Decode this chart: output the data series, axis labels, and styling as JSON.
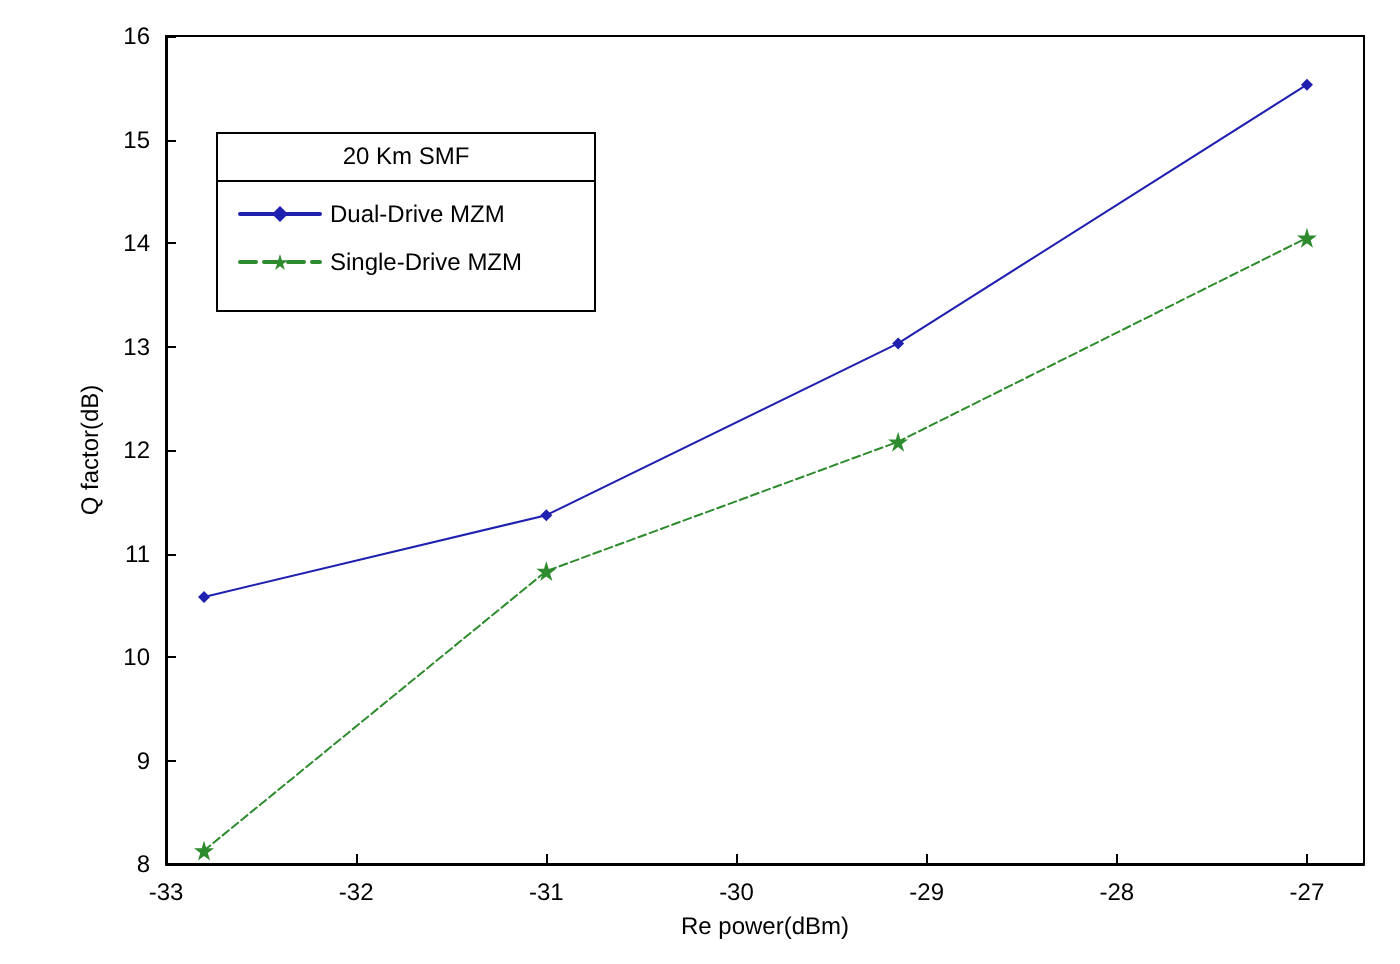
{
  "chart_data": {
    "type": "line",
    "xlabel": "Re power(dBm)",
    "ylabel": "Q factor(dB)",
    "legend_title": "20 Km SMF",
    "legend": "top left",
    "grid": false,
    "x": [
      -32.8,
      -31,
      -29.15,
      -27
    ],
    "xlim": [
      -33,
      -26.7
    ],
    "xticks": [
      -33,
      -32,
      -31,
      -30,
      -29,
      -28,
      -27
    ],
    "ylim": [
      8,
      16
    ],
    "yticks": [
      8,
      9,
      10,
      11,
      12,
      13,
      14,
      15,
      16
    ],
    "series": [
      {
        "name": "Dual-Drive MZM",
        "color": "#2020b0",
        "marker": "diamond",
        "line_style": "solid",
        "values": [
          10.58,
          11.37,
          13.03,
          15.53
        ]
      },
      {
        "name": "Single-Drive MZM",
        "color": "#2e8b2e",
        "marker": "star",
        "line_style": "dashed",
        "values": [
          8.13,
          10.83,
          12.08,
          14.05
        ]
      }
    ]
  }
}
